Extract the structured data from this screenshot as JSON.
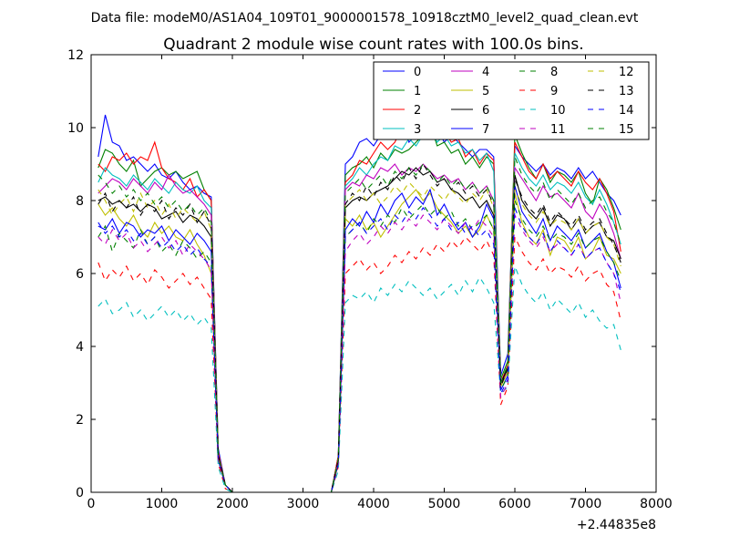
{
  "figure": {
    "suptitle": "Data file: modeM0/AS1A04_109T01_9000001578_10918cztM0_level2_quad_clean.evt"
  },
  "chart_data": {
    "type": "line",
    "title": "Quadrant 2 module wise count rates with 100.0s bins.",
    "xlabel": "",
    "ylabel": "",
    "x_offset_label": "+2.44835e8",
    "xlim": [
      0,
      8000
    ],
    "ylim": [
      0,
      12
    ],
    "xticks": [
      0,
      1000,
      2000,
      3000,
      4000,
      5000,
      6000,
      7000,
      8000
    ],
    "yticks": [
      0,
      2,
      4,
      6,
      8,
      10,
      12
    ],
    "grid": false,
    "legend": {
      "placement": "top-right",
      "columns": 4
    },
    "x": [
      100,
      200,
      300,
      400,
      500,
      600,
      700,
      800,
      900,
      1000,
      1100,
      1200,
      1300,
      1400,
      1500,
      1600,
      1700,
      1800,
      1900,
      2000,
      3300,
      3400,
      3500,
      3600,
      3700,
      3800,
      3900,
      4000,
      4100,
      4200,
      4300,
      4400,
      4500,
      4600,
      4700,
      4800,
      4900,
      5000,
      5100,
      5200,
      5300,
      5400,
      5500,
      5600,
      5700,
      5800,
      5900,
      6000,
      6100,
      6200,
      6300,
      6400,
      6500,
      6600,
      6700,
      6800,
      6900,
      7000,
      7100,
      7200,
      7300,
      7400,
      7500
    ],
    "series": [
      {
        "name": "0",
        "color": "#0000ff",
        "dash": "solid",
        "values": [
          9.2,
          10.35,
          9.6,
          9.5,
          9.1,
          9.2,
          9.0,
          8.8,
          9.0,
          8.7,
          8.6,
          8.8,
          8.5,
          8.3,
          8.4,
          8.2,
          8.1,
          1.2,
          0.2,
          0,
          0,
          0,
          1.0,
          9.0,
          9.2,
          9.6,
          9.7,
          9.5,
          9.8,
          9.7,
          9.9,
          10.1,
          9.6,
          9.8,
          9.7,
          9.9,
          10.0,
          9.6,
          9.8,
          9.6,
          9.4,
          9.2,
          9.4,
          9.4,
          9.2,
          3.2,
          3.8,
          9.5,
          9.2,
          9.0,
          8.8,
          9.0,
          8.7,
          8.9,
          8.8,
          8.6,
          8.9,
          8.6,
          8.8,
          8.5,
          8.2,
          8.0,
          7.6
        ]
      },
      {
        "name": "1",
        "color": "#008000",
        "dash": "solid",
        "values": [
          8.9,
          9.4,
          9.3,
          9.0,
          8.8,
          9.1,
          8.4,
          8.6,
          8.8,
          8.9,
          8.7,
          8.8,
          8.6,
          8.7,
          8.8,
          8.3,
          8.0,
          1.1,
          0.2,
          0,
          0,
          0,
          1.0,
          8.7,
          8.9,
          9.0,
          9.2,
          8.9,
          9.3,
          9.1,
          9.4,
          9.3,
          9.4,
          9.6,
          9.8,
          10.1,
          9.5,
          9.6,
          9.3,
          9.4,
          9.0,
          9.2,
          8.9,
          9.2,
          9.0,
          3.1,
          3.6,
          9.8,
          9.3,
          8.9,
          8.6,
          9.0,
          8.5,
          8.8,
          8.7,
          8.5,
          8.8,
          8.2,
          7.9,
          8.6,
          8.3,
          7.8,
          7.2
        ]
      },
      {
        "name": "2",
        "color": "#ff0000",
        "dash": "solid",
        "values": [
          9.0,
          8.8,
          9.2,
          9.1,
          9.3,
          9.0,
          9.2,
          9.1,
          9.6,
          8.9,
          8.6,
          8.5,
          8.3,
          8.6,
          8.1,
          8.3,
          8.0,
          1.1,
          0.2,
          0,
          0,
          0,
          1.0,
          8.5,
          8.7,
          9.1,
          9.0,
          9.3,
          9.6,
          9.4,
          9.6,
          10.0,
          10.1,
          10.3,
          10.5,
          10.3,
          10.1,
          9.9,
          9.6,
          9.7,
          9.2,
          9.4,
          9.0,
          9.3,
          9.1,
          3.0,
          3.5,
          9.6,
          9.2,
          8.8,
          8.6,
          9.0,
          8.6,
          8.8,
          8.6,
          8.4,
          8.8,
          8.5,
          8.3,
          8.6,
          8.2,
          7.7,
          6.6
        ]
      },
      {
        "name": "3",
        "color": "#00bfbf",
        "dash": "solid",
        "values": [
          8.5,
          8.9,
          8.7,
          8.6,
          8.4,
          8.7,
          8.5,
          8.3,
          8.6,
          8.4,
          8.2,
          8.5,
          8.3,
          8.2,
          8.4,
          8.0,
          7.8,
          1.0,
          0.2,
          0,
          0,
          0,
          0.9,
          8.4,
          8.6,
          8.9,
          8.7,
          9.0,
          9.2,
          9.1,
          9.5,
          9.4,
          9.7,
          9.5,
          9.8,
          10.0,
          9.6,
          9.8,
          9.5,
          9.6,
          9.3,
          9.4,
          9.1,
          9.3,
          8.8,
          2.9,
          3.4,
          9.3,
          8.9,
          8.6,
          8.4,
          8.7,
          8.3,
          8.5,
          8.4,
          8.2,
          8.5,
          8.1,
          7.9,
          8.3,
          7.9,
          7.4,
          6.8
        ]
      },
      {
        "name": "4",
        "color": "#bf00bf",
        "dash": "solid",
        "values": [
          8.2,
          8.4,
          8.6,
          8.5,
          8.3,
          8.6,
          8.4,
          8.2,
          8.5,
          8.3,
          8.7,
          8.4,
          8.2,
          8.3,
          8.1,
          7.9,
          7.6,
          1.0,
          0.2,
          0,
          0,
          0,
          0.9,
          8.3,
          8.5,
          8.4,
          8.7,
          8.6,
          8.9,
          8.8,
          9.0,
          8.7,
          8.9,
          8.8,
          9.0,
          8.8,
          8.6,
          8.7,
          8.5,
          8.6,
          8.3,
          8.5,
          8.2,
          8.4,
          8.0,
          2.9,
          3.4,
          8.9,
          8.6,
          8.3,
          8.0,
          8.4,
          8.1,
          8.2,
          8.0,
          7.8,
          8.2,
          7.7,
          7.5,
          7.9,
          7.6,
          7.1,
          6.4
        ]
      },
      {
        "name": "5",
        "color": "#bfbf00",
        "dash": "solid",
        "values": [
          7.9,
          7.6,
          7.8,
          7.5,
          7.3,
          7.6,
          7.2,
          7.0,
          7.4,
          7.1,
          7.3,
          7.0,
          6.9,
          7.2,
          6.8,
          6.5,
          6.0,
          0.9,
          0.2,
          0,
          0,
          0,
          0.8,
          7.5,
          7.3,
          7.6,
          7.2,
          7.4,
          7.0,
          7.3,
          7.6,
          7.9,
          8.1,
          8.3,
          8.0,
          8.2,
          7.8,
          7.6,
          7.4,
          7.1,
          7.3,
          7.0,
          7.2,
          7.6,
          7.2,
          2.9,
          3.3,
          8.2,
          7.4,
          7.0,
          6.8,
          7.2,
          6.5,
          7.0,
          6.9,
          6.6,
          7.0,
          6.4,
          6.6,
          7.0,
          6.5,
          6.4,
          6.0
        ]
      },
      {
        "name": "6",
        "color": "#000000",
        "dash": "solid",
        "values": [
          8.0,
          8.1,
          7.9,
          8.0,
          7.8,
          7.9,
          7.7,
          7.9,
          7.8,
          7.5,
          7.6,
          7.7,
          7.4,
          7.6,
          7.5,
          7.3,
          7.0,
          1.0,
          0.2,
          0,
          0,
          0,
          0.9,
          7.8,
          8.0,
          8.1,
          8.0,
          8.2,
          8.3,
          8.4,
          8.6,
          8.8,
          8.7,
          8.9,
          8.7,
          8.8,
          8.5,
          8.6,
          8.3,
          8.2,
          8.0,
          8.1,
          7.8,
          8.0,
          7.6,
          3.0,
          3.4,
          8.7,
          8.0,
          7.7,
          7.5,
          7.8,
          7.3,
          7.6,
          7.5,
          7.2,
          7.5,
          7.1,
          7.3,
          7.4,
          7.0,
          6.9,
          6.4
        ]
      },
      {
        "name": "7",
        "color": "#0000ff",
        "dash": "solid",
        "values": [
          7.3,
          7.2,
          7.5,
          7.1,
          7.4,
          7.3,
          7.0,
          7.2,
          7.1,
          7.3,
          6.9,
          7.2,
          7.0,
          6.8,
          7.1,
          6.9,
          6.6,
          0.9,
          0.2,
          0,
          0,
          0,
          0.8,
          7.2,
          7.5,
          7.3,
          7.7,
          7.4,
          7.9,
          7.6,
          8.0,
          8.2,
          7.8,
          8.1,
          7.9,
          8.3,
          7.6,
          7.9,
          7.5,
          7.2,
          7.4,
          7.0,
          7.3,
          7.9,
          7.5,
          2.8,
          3.2,
          8.4,
          7.7,
          7.4,
          7.1,
          7.5,
          6.9,
          7.3,
          7.1,
          6.9,
          7.2,
          6.7,
          6.9,
          7.1,
          6.6,
          6.3,
          5.6
        ]
      },
      {
        "name": "8",
        "color": "#008000",
        "dash": "dashed",
        "values": [
          7.0,
          7.3,
          6.6,
          7.1,
          6.9,
          6.7,
          7.2,
          6.8,
          7.0,
          6.6,
          6.8,
          6.5,
          6.9,
          6.7,
          6.4,
          6.6,
          6.3,
          0.9,
          0.2,
          0,
          0,
          0,
          0.8,
          7.0,
          7.2,
          7.4,
          7.1,
          7.5,
          7.3,
          7.6,
          7.4,
          7.8,
          7.5,
          7.7,
          7.9,
          7.6,
          7.8,
          7.5,
          7.7,
          7.3,
          7.5,
          7.2,
          7.4,
          7.6,
          7.2,
          2.8,
          3.2,
          8.0,
          7.5,
          7.2,
          7.0,
          7.3,
          6.9,
          7.1,
          7.0,
          6.8,
          7.1,
          6.7,
          6.9,
          7.0,
          6.6,
          6.3,
          5.8
        ]
      },
      {
        "name": "9",
        "color": "#ff0000",
        "dash": "dashed",
        "values": [
          6.3,
          5.8,
          6.1,
          5.9,
          6.2,
          5.8,
          6.0,
          5.7,
          6.1,
          5.9,
          5.6,
          5.8,
          6.0,
          5.7,
          5.9,
          5.6,
          5.3,
          0.8,
          0.1,
          0,
          0,
          0,
          0.7,
          6.0,
          6.2,
          6.4,
          6.1,
          6.3,
          6.0,
          6.2,
          6.5,
          6.3,
          6.6,
          6.4,
          6.7,
          6.5,
          6.8,
          6.6,
          6.9,
          6.7,
          7.0,
          6.8,
          6.6,
          6.9,
          6.5,
          2.4,
          2.9,
          7.0,
          6.6,
          6.3,
          6.1,
          6.4,
          6.0,
          6.2,
          6.1,
          5.9,
          6.2,
          5.8,
          6.0,
          6.1,
          5.7,
          5.5,
          4.7
        ]
      },
      {
        "name": "10",
        "color": "#00bfbf",
        "dash": "dashed",
        "values": [
          5.1,
          5.3,
          4.9,
          5.0,
          5.2,
          4.8,
          5.0,
          4.7,
          4.9,
          5.1,
          4.8,
          5.0,
          4.7,
          4.9,
          4.6,
          4.8,
          4.5,
          0.7,
          0.1,
          0,
          0,
          0,
          0.6,
          5.2,
          5.4,
          5.3,
          5.5,
          5.2,
          5.6,
          5.4,
          5.7,
          5.5,
          5.8,
          5.6,
          5.4,
          5.6,
          5.3,
          5.5,
          5.7,
          5.4,
          5.8,
          5.5,
          5.9,
          5.6,
          5.2,
          2.7,
          2.9,
          6.2,
          5.7,
          5.4,
          5.2,
          5.5,
          5.0,
          5.3,
          5.1,
          4.9,
          5.2,
          4.8,
          5.0,
          4.7,
          4.5,
          4.6,
          3.9
        ]
      },
      {
        "name": "11",
        "color": "#bf00bf",
        "dash": "dashed",
        "values": [
          7.0,
          6.8,
          7.2,
          6.9,
          7.1,
          6.7,
          6.9,
          6.6,
          6.8,
          7.0,
          6.7,
          6.9,
          6.5,
          6.8,
          6.6,
          6.4,
          6.1,
          0.9,
          0.2,
          0,
          0,
          0,
          0.8,
          6.6,
          6.9,
          7.1,
          6.8,
          7.0,
          7.3,
          7.1,
          7.4,
          7.2,
          7.5,
          7.3,
          7.6,
          7.4,
          7.2,
          7.5,
          7.3,
          7.1,
          7.4,
          7.2,
          7.5,
          7.3,
          7.0,
          2.6,
          3.0,
          7.6,
          7.2,
          6.9,
          6.7,
          7.0,
          6.6,
          6.8,
          6.7,
          6.5,
          6.8,
          6.4,
          6.6,
          6.7,
          6.3,
          6.0,
          5.2
        ]
      },
      {
        "name": "12",
        "color": "#bfbf00",
        "dash": "dashed",
        "values": [
          8.3,
          8.0,
          7.6,
          7.9,
          8.1,
          7.7,
          8.2,
          7.8,
          8.0,
          7.6,
          7.9,
          7.5,
          7.8,
          7.6,
          7.4,
          7.7,
          7.2,
          1.0,
          0.2,
          0,
          0,
          0,
          0.9,
          7.9,
          8.1,
          8.3,
          8.0,
          8.2,
          7.9,
          8.1,
          8.4,
          8.2,
          8.5,
          8.3,
          8.1,
          8.4,
          8.2,
          8.0,
          8.3,
          8.1,
          7.9,
          8.2,
          8.0,
          8.3,
          7.8,
          2.9,
          3.3,
          8.3,
          7.9,
          7.6,
          7.4,
          7.7,
          7.3,
          7.5,
          7.4,
          7.2,
          7.5,
          7.1,
          7.3,
          7.4,
          7.0,
          6.8,
          6.2
        ]
      },
      {
        "name": "13",
        "color": "#000000",
        "dash": "dashed",
        "values": [
          7.9,
          8.2,
          7.7,
          8.0,
          7.8,
          8.1,
          7.6,
          7.9,
          7.7,
          8.0,
          7.5,
          7.8,
          7.6,
          7.9,
          7.4,
          7.7,
          7.3,
          1.0,
          0.2,
          0,
          0,
          0,
          0.9,
          7.9,
          8.2,
          8.0,
          8.4,
          8.1,
          8.5,
          8.3,
          8.7,
          8.5,
          8.9,
          8.6,
          9.0,
          8.7,
          8.4,
          8.6,
          8.3,
          8.5,
          8.2,
          8.4,
          8.1,
          8.3,
          7.9,
          2.9,
          3.4,
          8.6,
          8.1,
          7.8,
          7.6,
          7.9,
          7.4,
          7.7,
          7.5,
          7.3,
          7.6,
          7.2,
          7.4,
          7.5,
          7.1,
          6.8,
          6.3
        ]
      },
      {
        "name": "14",
        "color": "#0000ff",
        "dash": "dashed",
        "values": [
          7.4,
          7.1,
          7.3,
          7.0,
          7.2,
          6.9,
          7.1,
          6.8,
          7.0,
          6.7,
          6.9,
          6.6,
          6.8,
          6.5,
          6.7,
          6.4,
          6.2,
          0.9,
          0.2,
          0,
          0,
          0,
          0.8,
          7.0,
          7.2,
          7.4,
          7.1,
          7.3,
          7.5,
          7.2,
          7.6,
          7.4,
          7.7,
          7.5,
          7.8,
          7.6,
          7.3,
          7.5,
          7.2,
          7.4,
          7.1,
          7.3,
          7.0,
          7.2,
          6.8,
          2.7,
          3.1,
          7.8,
          7.3,
          7.0,
          6.8,
          7.1,
          6.6,
          6.9,
          6.7,
          6.5,
          6.8,
          6.4,
          6.6,
          6.7,
          6.3,
          6.0,
          5.5
        ]
      },
      {
        "name": "15",
        "color": "#008000",
        "dash": "dashed",
        "values": [
          8.7,
          8.5,
          8.2,
          8.4,
          8.1,
          8.3,
          8.0,
          8.2,
          7.9,
          8.1,
          7.8,
          8.0,
          7.7,
          7.9,
          7.6,
          7.8,
          7.4,
          1.0,
          0.2,
          0,
          0,
          0,
          0.9,
          8.2,
          8.4,
          8.6,
          8.3,
          8.5,
          8.7,
          8.4,
          8.8,
          8.6,
          8.9,
          8.7,
          9.0,
          8.8,
          8.5,
          8.7,
          8.4,
          8.6,
          8.3,
          8.5,
          8.2,
          8.4,
          8.0,
          3.0,
          3.5,
          9.2,
          8.7,
          8.4,
          8.2,
          8.5,
          8.0,
          8.3,
          8.1,
          7.9,
          8.2,
          7.8,
          8.0,
          8.1,
          7.7,
          7.4,
          6.8
        ]
      }
    ]
  }
}
